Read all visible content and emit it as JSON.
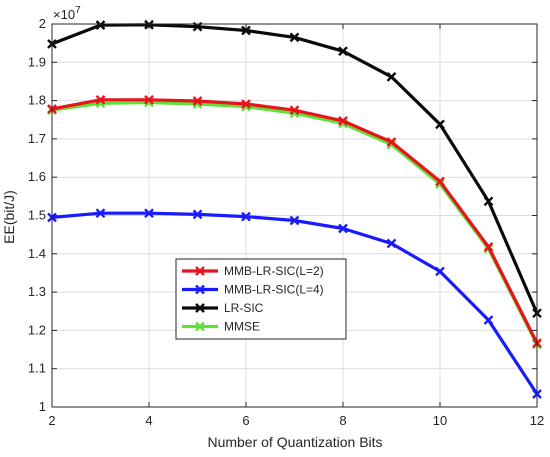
{
  "chart_data": {
    "type": "line",
    "title": "",
    "xlabel": "Number of Quantization Bits",
    "ylabel": "EE(bit/J)",
    "y_multiplier_label": "×10",
    "y_multiplier_exponent": "7",
    "xlim": [
      2,
      12
    ],
    "ylim": [
      1.0,
      2.0
    ],
    "x_ticks": [
      "2",
      "4",
      "6",
      "8",
      "10",
      "12"
    ],
    "y_ticks": [
      "1",
      "1.1",
      "1.2",
      "1.3",
      "1.4",
      "1.5",
      "1.6",
      "1.7",
      "1.8",
      "1.9",
      "2"
    ],
    "grid": true,
    "legend_position": "lower-left",
    "x": [
      2,
      3,
      4,
      5,
      6,
      7,
      8,
      9,
      10,
      11,
      12
    ],
    "series": [
      {
        "name": "MMB-LR-SIC(L=2)",
        "color": "#e8141b",
        "marker": "x",
        "values": [
          1.778,
          1.802,
          1.802,
          1.799,
          1.791,
          1.775,
          1.747,
          1.692,
          1.589,
          1.418,
          1.167
        ]
      },
      {
        "name": "MMB-LR-SIC(L=4)",
        "color": "#1a1aff",
        "marker": "x",
        "values": [
          1.495,
          1.506,
          1.506,
          1.503,
          1.497,
          1.487,
          1.466,
          1.427,
          1.354,
          1.227,
          1.034
        ]
      },
      {
        "name": "LR-SIC",
        "color": "#0a0a0a",
        "marker": "x",
        "values": [
          1.948,
          1.997,
          1.998,
          1.993,
          1.983,
          1.965,
          1.929,
          1.862,
          1.738,
          1.537,
          1.245
        ]
      },
      {
        "name": "MMSE",
        "color": "#5fe03a",
        "marker": "x",
        "values": [
          1.775,
          1.793,
          1.795,
          1.791,
          1.784,
          1.767,
          1.74,
          1.685,
          1.582,
          1.413,
          1.163
        ]
      }
    ]
  }
}
